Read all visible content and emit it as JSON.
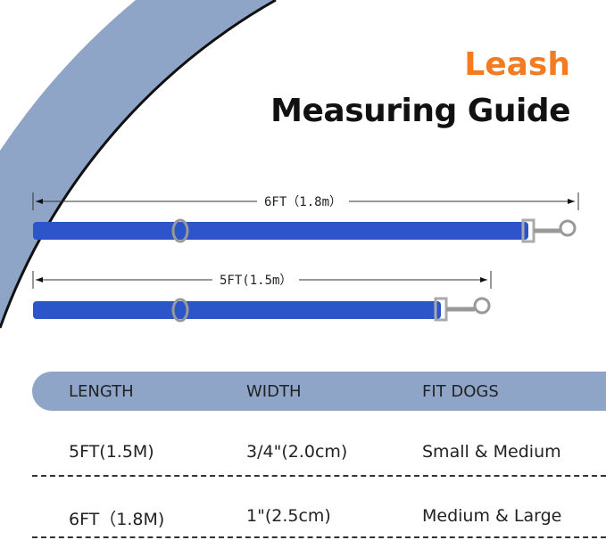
{
  "title": {
    "line1": "Leash",
    "line2": "Measuring Guide"
  },
  "colors": {
    "accent": "#f47b20",
    "band": "#8fa5c8",
    "leash": "#2b55c9"
  },
  "leashes": [
    {
      "label": "6FT（1.8m）"
    },
    {
      "label": "5FT(1.5m）"
    }
  ],
  "table": {
    "headers": [
      "LENGTH",
      "WIDTH",
      "FIT DOGS"
    ],
    "rows": [
      [
        "5FT(1.5M)",
        "3/4\"(2.0cm)",
        "Small & Medium"
      ],
      [
        "6FT（1.8M)",
        "1\"(2.5cm)",
        "Medium & Large"
      ]
    ]
  }
}
